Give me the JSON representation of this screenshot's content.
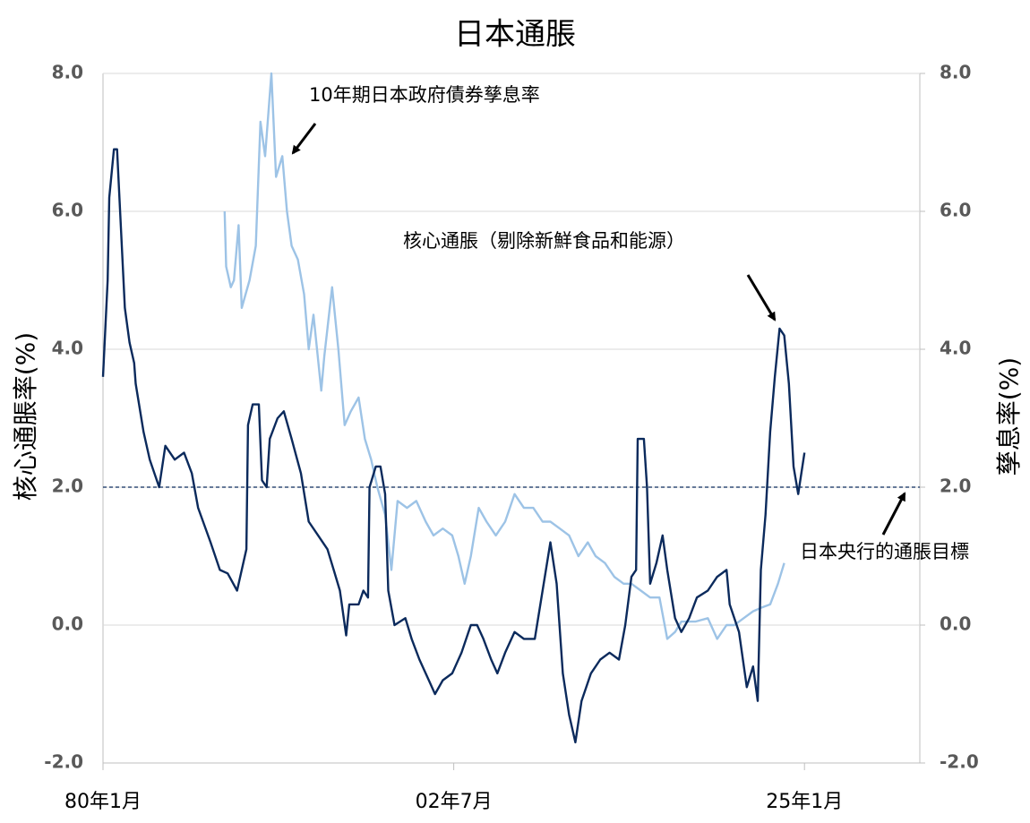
{
  "chart_data": {
    "type": "line",
    "title": "日本通脹",
    "ylabel": "核心通脹率(%)",
    "y2label": "孳息率(%)",
    "xlim": [
      1980,
      2032.4
    ],
    "xticks": [
      {
        "value": 1980,
        "label": "80年1月"
      },
      {
        "value": 2002.5,
        "label": "02年7月"
      },
      {
        "value": 2025,
        "label": "25年1月"
      }
    ],
    "ylim": [
      -2,
      8
    ],
    "yticks": [
      {
        "value": -2,
        "label": "-2.0"
      },
      {
        "value": 0,
        "label": "0.0"
      },
      {
        "value": 2,
        "label": "2.0"
      },
      {
        "value": 4,
        "label": "4.0"
      },
      {
        "value": 6,
        "label": "6.0"
      },
      {
        "value": 8,
        "label": "8.0"
      }
    ],
    "y2lim": [
      -2,
      8
    ],
    "y2ticks": [
      {
        "value": -2,
        "label": "-2.0"
      },
      {
        "value": 0,
        "label": "0.0"
      },
      {
        "value": 2,
        "label": "2.0"
      },
      {
        "value": 4,
        "label": "4.0"
      },
      {
        "value": 6,
        "label": "6.0"
      },
      {
        "value": 8,
        "label": "8.0"
      }
    ],
    "grid": true,
    "target": 2,
    "annotations": [
      "10年期日本政府債券孳息率",
      "核心通脹（剔除新鮮食品和能源）",
      "日本央行的通脹目標"
    ],
    "series": [
      {
        "name": "核心通脹（剔除新鮮食品和能源）",
        "color": "#0b2a5c",
        "x": [
          1980.0,
          1980.3,
          1980.4,
          1980.7,
          1980.9,
          1981.1,
          1981.4,
          1981.7,
          1982.0,
          1982.1,
          1982.6,
          1983.0,
          1983.6,
          1984.0,
          1984.6,
          1985.2,
          1985.7,
          1986.1,
          1986.9,
          1987.5,
          1988.0,
          1988.6,
          1988.9,
          1989.2,
          1989.3,
          1989.6,
          1990.0,
          1990.2,
          1990.5,
          1990.7,
          1991.2,
          1991.6,
          1992.1,
          1992.7,
          1993.2,
          1993.8,
          1994.4,
          1994.8,
          1995.2,
          1995.6,
          1995.8,
          1996.4,
          1996.7,
          1997.0,
          1997.1,
          1997.5,
          1997.8,
          1998.1,
          1998.3,
          1998.7,
          1999.4,
          1999.8,
          2000.3,
          2000.9,
          2001.3,
          2001.8,
          2002.4,
          2003.0,
          2003.6,
          2004.0,
          2004.4,
          2004.9,
          2005.3,
          2005.8,
          2006.4,
          2007.0,
          2007.7,
          2008.2,
          2008.7,
          2009.1,
          2009.5,
          2009.9,
          2010.3,
          2010.7,
          2011.3,
          2011.9,
          2012.5,
          2013.1,
          2013.5,
          2013.9,
          2014.2,
          2014.3,
          2014.7,
          2014.9,
          2015.1,
          2015.5,
          2015.9,
          2016.2,
          2016.7,
          2017.1,
          2017.6,
          2018.1,
          2018.8,
          2019.4,
          2020.0,
          2020.2,
          2020.8,
          2021.3,
          2021.7,
          2022.0,
          2022.2,
          2022.5,
          2022.8,
          2023.1,
          2023.4,
          2023.7,
          2024.0,
          2024.3,
          2024.6,
          2024.8,
          2025.0
        ],
        "values": [
          3.6,
          5.0,
          6.2,
          6.9,
          6.9,
          6.0,
          4.6,
          4.1,
          3.8,
          3.5,
          2.8,
          2.4,
          2.0,
          2.6,
          2.4,
          2.5,
          2.2,
          1.7,
          1.2,
          0.8,
          0.75,
          0.5,
          0.8,
          1.1,
          2.9,
          3.2,
          3.2,
          2.1,
          2.0,
          2.7,
          3.0,
          3.1,
          2.7,
          2.2,
          1.5,
          1.3,
          1.1,
          0.8,
          0.5,
          -0.15,
          0.3,
          0.3,
          0.5,
          0.4,
          2.0,
          2.3,
          2.3,
          1.9,
          0.5,
          0.0,
          0.1,
          -0.2,
          -0.5,
          -0.8,
          -1.0,
          -0.8,
          -0.7,
          -0.4,
          0.0,
          0.0,
          -0.2,
          -0.5,
          -0.7,
          -0.4,
          -0.1,
          -0.2,
          -0.2,
          0.5,
          1.2,
          0.6,
          -0.7,
          -1.3,
          -1.7,
          -1.1,
          -0.7,
          -0.5,
          -0.4,
          -0.5,
          0.0,
          0.7,
          0.8,
          2.7,
          2.7,
          2.0,
          0.6,
          0.9,
          1.3,
          0.8,
          0.1,
          -0.1,
          0.1,
          0.4,
          0.5,
          0.7,
          0.8,
          0.3,
          -0.1,
          -0.9,
          -0.6,
          -1.1,
          0.8,
          1.6,
          2.8,
          3.6,
          4.3,
          4.2,
          3.5,
          2.3,
          1.9,
          2.2,
          2.5
        ]
      },
      {
        "name": "10年期日本政府債券孳息率",
        "color": "#9dc3e6",
        "axis": "y2",
        "x": [
          1987.8,
          1987.9,
          1988.2,
          1988.4,
          1988.7,
          1988.9,
          1989.4,
          1989.8,
          1990.1,
          1990.4,
          1990.8,
          1991.1,
          1991.5,
          1991.8,
          1992.1,
          1992.5,
          1992.9,
          1993.2,
          1993.5,
          1994.0,
          1994.2,
          1994.7,
          1995.1,
          1995.5,
          1995.9,
          1996.4,
          1996.8,
          1997.2,
          1997.6,
          1998.1,
          1998.5,
          1998.9,
          1999.5,
          2000.1,
          2000.7,
          2001.2,
          2001.8,
          2002.4,
          2002.8,
          2003.2,
          2003.6,
          2004.1,
          2004.6,
          2005.2,
          2005.8,
          2006.4,
          2007.0,
          2007.6,
          2008.2,
          2008.7,
          2009.3,
          2009.9,
          2010.5,
          2011.1,
          2011.6,
          2012.2,
          2012.8,
          2013.4,
          2013.9,
          2014.5,
          2015.1,
          2015.7,
          2016.2,
          2016.7,
          2017.1,
          2018.0,
          2018.8,
          2019.4,
          2020.0,
          2020.5,
          2021.1,
          2021.7,
          2022.2,
          2022.8,
          2023.3,
          2023.7
        ],
        "values": [
          6.0,
          5.2,
          4.9,
          5.0,
          5.8,
          4.6,
          5.0,
          5.5,
          7.3,
          6.8,
          8.0,
          6.5,
          6.8,
          6.0,
          5.5,
          5.3,
          4.8,
          4.0,
          4.5,
          3.4,
          3.9,
          4.9,
          4.0,
          2.9,
          3.1,
          3.3,
          2.7,
          2.4,
          2.0,
          1.6,
          0.8,
          1.8,
          1.7,
          1.8,
          1.5,
          1.3,
          1.4,
          1.3,
          1.0,
          0.6,
          1.0,
          1.7,
          1.5,
          1.3,
          1.5,
          1.9,
          1.7,
          1.7,
          1.5,
          1.5,
          1.4,
          1.3,
          1.0,
          1.2,
          1.0,
          0.9,
          0.7,
          0.6,
          0.6,
          0.5,
          0.4,
          0.4,
          -0.2,
          -0.1,
          0.05,
          0.05,
          0.1,
          -0.2,
          0.0,
          0.0,
          0.1,
          0.2,
          0.25,
          0.3,
          0.6,
          0.9
        ]
      }
    ]
  }
}
